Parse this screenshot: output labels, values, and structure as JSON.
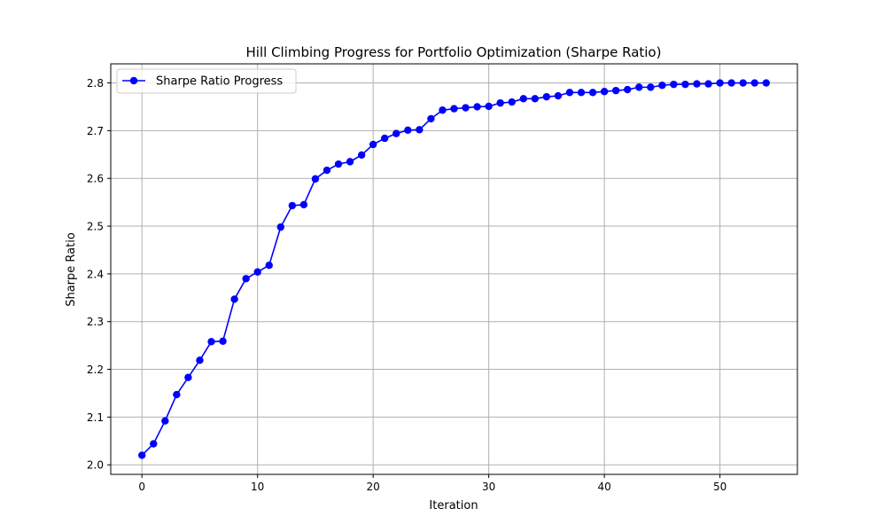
{
  "chart_data": {
    "type": "line",
    "title": "Hill Climbing Progress for Portfolio Optimization (Sharpe Ratio)",
    "xlabel": "Iteration",
    "ylabel": "Sharpe Ratio",
    "xlim": [
      -2.7,
      56.7
    ],
    "ylim": [
      1.98,
      2.84
    ],
    "xticks": [
      0,
      10,
      20,
      30,
      40,
      50
    ],
    "yticks": [
      2.0,
      2.1,
      2.2,
      2.3,
      2.4,
      2.5,
      2.6,
      2.7,
      2.8
    ],
    "xtick_labels": [
      "0",
      "10",
      "20",
      "30",
      "40",
      "50"
    ],
    "ytick_labels": [
      "2.0",
      "2.1",
      "2.2",
      "2.3",
      "2.4",
      "2.5",
      "2.6",
      "2.7",
      "2.8"
    ],
    "grid": true,
    "legend_position": "top-left",
    "colors": {
      "series": "#0000ff",
      "grid": "#b0b0b0",
      "axis": "#000000"
    },
    "series": [
      {
        "name": "Sharpe Ratio Progress",
        "marker": "circle",
        "x": [
          0,
          1,
          2,
          3,
          4,
          5,
          6,
          7,
          8,
          9,
          10,
          11,
          12,
          13,
          14,
          15,
          16,
          17,
          18,
          19,
          20,
          21,
          22,
          23,
          24,
          25,
          26,
          27,
          28,
          29,
          30,
          31,
          32,
          33,
          34,
          35,
          36,
          37,
          38,
          39,
          40,
          41,
          42,
          43,
          44,
          45,
          46,
          47,
          48,
          49,
          50,
          51,
          52,
          53,
          54
        ],
        "y": [
          2.02,
          2.044,
          2.092,
          2.147,
          2.183,
          2.219,
          2.258,
          2.259,
          2.347,
          2.39,
          2.404,
          2.418,
          2.498,
          2.543,
          2.545,
          2.599,
          2.617,
          2.63,
          2.635,
          2.649,
          2.671,
          2.684,
          2.694,
          2.701,
          2.702,
          2.725,
          2.743,
          2.746,
          2.748,
          2.75,
          2.751,
          2.758,
          2.76,
          2.767,
          2.767,
          2.771,
          2.773,
          2.78,
          2.78,
          2.78,
          2.782,
          2.784,
          2.786,
          2.791,
          2.791,
          2.795,
          2.797,
          2.797,
          2.798,
          2.798,
          2.8,
          2.8,
          2.8,
          2.8,
          2.8
        ]
      }
    ]
  }
}
